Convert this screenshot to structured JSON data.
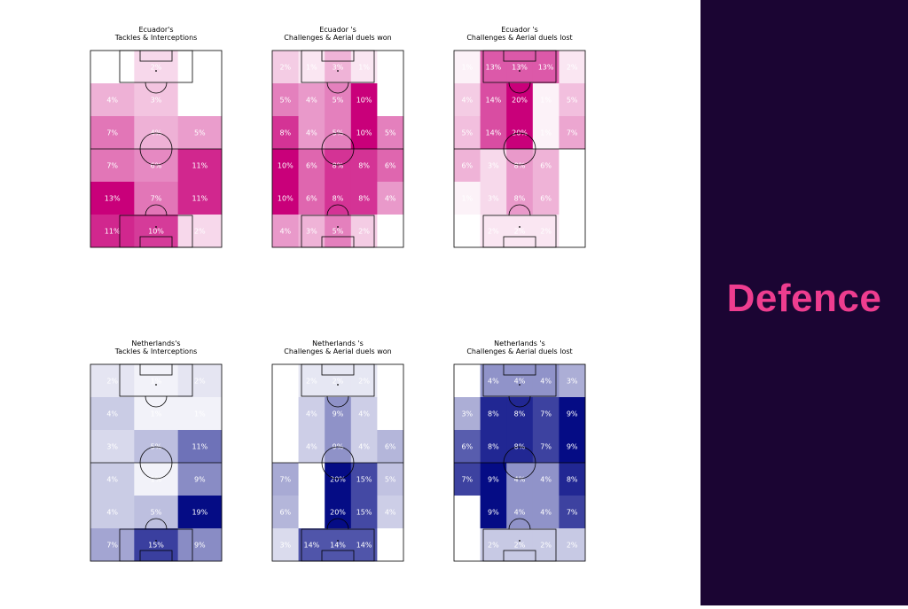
{
  "colors": {
    "panel_bg": "#1b0533",
    "panel_text": "#ee3d8f",
    "ecuador_scale": "#c9007a",
    "netherlands_scale": "#050c85",
    "pitch_lines": "#000000",
    "cell_label": "#ffffff"
  },
  "side_panel": {
    "title": "Defence"
  },
  "chart_data": [
    {
      "type": "heatmap",
      "team": "ecuador",
      "title": "Ecuador's",
      "subtitle": "Tackles & Interceptions",
      "value_unit": "%",
      "grid_rows": 6,
      "grid_cols": 3,
      "values": [
        [
          0,
          2,
          0
        ],
        [
          4,
          3,
          0
        ],
        [
          7,
          4,
          5
        ],
        [
          7,
          6,
          11
        ],
        [
          13,
          7,
          11
        ],
        [
          11,
          10,
          2
        ]
      ]
    },
    {
      "type": "heatmap",
      "team": "ecuador",
      "title": "Ecuador 's",
      "subtitle": "Challenges & Aerial duels won",
      "value_unit": "%",
      "grid_rows": 6,
      "grid_cols": 5,
      "values": [
        [
          2,
          1,
          3,
          1,
          0
        ],
        [
          5,
          4,
          5,
          10,
          0
        ],
        [
          8,
          4,
          5,
          10,
          5
        ],
        [
          10,
          6,
          8,
          8,
          6
        ],
        [
          10,
          6,
          8,
          8,
          4
        ],
        [
          4,
          3,
          5,
          2,
          0
        ]
      ]
    },
    {
      "type": "heatmap",
      "team": "ecuador",
      "title": "Ecuador 's",
      "subtitle": "Challenges & Aerial duels lost",
      "value_unit": "%",
      "grid_rows": 6,
      "grid_cols": 5,
      "values": [
        [
          1,
          13,
          13,
          13,
          2
        ],
        [
          4,
          14,
          20,
          1,
          5
        ],
        [
          5,
          14,
          20,
          1,
          7
        ],
        [
          6,
          3,
          8,
          6,
          0
        ],
        [
          1,
          3,
          8,
          6,
          0
        ],
        [
          0,
          2,
          2,
          2,
          0
        ]
      ]
    },
    {
      "type": "heatmap",
      "team": "netherlands",
      "title": "Netherlands's",
      "subtitle": "Tackles & Interceptions",
      "value_unit": "%",
      "grid_rows": 6,
      "grid_cols": 3,
      "values": [
        [
          2,
          1,
          2
        ],
        [
          4,
          1,
          1
        ],
        [
          3,
          5,
          11
        ],
        [
          4,
          1,
          9
        ],
        [
          4,
          5,
          19
        ],
        [
          7,
          15,
          9
        ]
      ]
    },
    {
      "type": "heatmap",
      "team": "netherlands",
      "title": "Netherlands 's",
      "subtitle": "Challenges & Aerial duels won",
      "value_unit": "%",
      "grid_rows": 6,
      "grid_cols": 5,
      "values": [
        [
          0,
          2,
          2,
          2,
          0
        ],
        [
          0,
          4,
          9,
          4,
          0
        ],
        [
          0,
          4,
          9,
          4,
          6
        ],
        [
          7,
          0,
          20,
          15,
          5
        ],
        [
          6,
          0,
          20,
          15,
          4
        ],
        [
          3,
          14,
          14,
          14,
          0
        ]
      ]
    },
    {
      "type": "heatmap",
      "team": "netherlands",
      "title": "Netherlands 's",
      "subtitle": "Challenges & Aerial duels lost",
      "value_unit": "%",
      "grid_rows": 6,
      "grid_cols": 5,
      "values": [
        [
          0,
          4,
          4,
          4,
          3
        ],
        [
          3,
          8,
          8,
          7,
          9
        ],
        [
          6,
          8,
          8,
          7,
          9
        ],
        [
          7,
          9,
          4,
          4,
          8
        ],
        [
          0,
          9,
          4,
          4,
          7
        ],
        [
          0,
          2,
          2,
          2,
          2
        ]
      ]
    }
  ]
}
